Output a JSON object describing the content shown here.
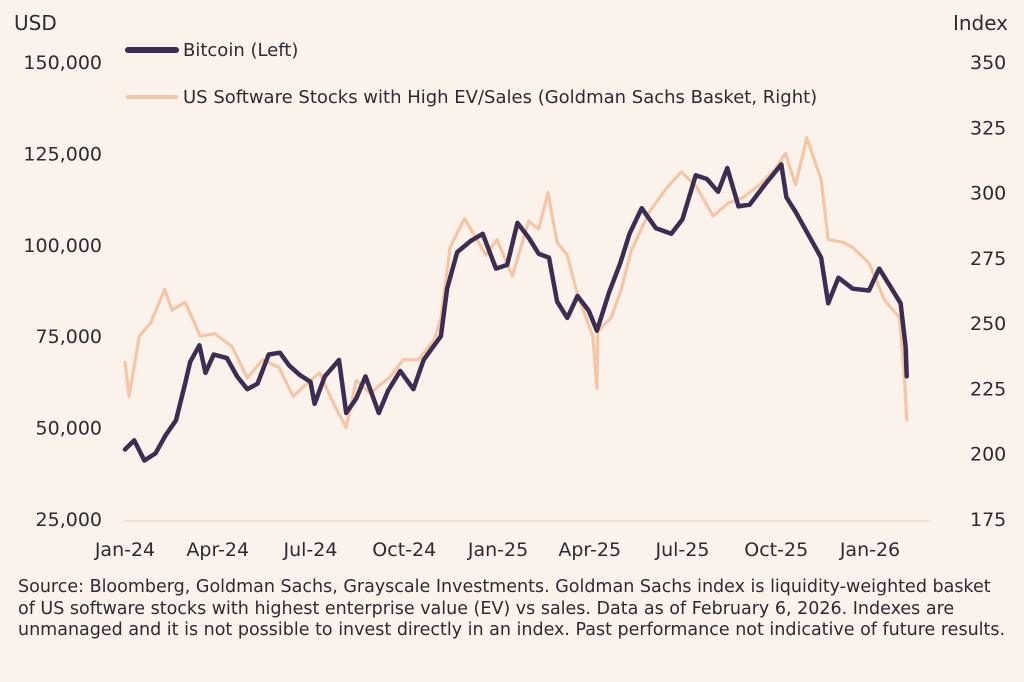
{
  "chart_data": {
    "type": "line",
    "left_axis_label": "USD",
    "right_axis_label": "Index",
    "left_ylim": [
      25000,
      150000
    ],
    "right_ylim": [
      175,
      350
    ],
    "left_ticks": [
      "25,000",
      "50,000",
      "75,000",
      "100,000",
      "125,000",
      "150,000"
    ],
    "right_ticks": [
      "175",
      "200",
      "225",
      "250",
      "275",
      "300",
      "325",
      "350"
    ],
    "x_tick_labels": [
      "Jan-24",
      "Apr-24",
      "Jul-24",
      "Oct-24",
      "Jan-25",
      "Apr-25",
      "Jul-25",
      "Oct-25",
      "Jan-26"
    ],
    "x_range": [
      "2024-01",
      "2026-02"
    ],
    "grid": false,
    "legend_position": "top-left",
    "series": [
      {
        "name": "Bitcoin (Left)",
        "axis": "left",
        "color": "#3d2d52",
        "x": [
          "2024-01-01",
          "2024-01-10",
          "2024-01-20",
          "2024-01-31",
          "2024-02-10",
          "2024-02-20",
          "2024-02-29",
          "2024-03-05",
          "2024-03-14",
          "2024-03-20",
          "2024-03-28",
          "2024-04-10",
          "2024-04-20",
          "2024-04-30",
          "2024-05-10",
          "2024-05-21",
          "2024-06-01",
          "2024-06-10",
          "2024-06-20",
          "2024-07-01",
          "2024-07-05",
          "2024-07-15",
          "2024-07-29",
          "2024-08-05",
          "2024-08-15",
          "2024-08-24",
          "2024-09-06",
          "2024-09-15",
          "2024-09-27",
          "2024-10-10",
          "2024-10-20",
          "2024-10-29",
          "2024-11-06",
          "2024-11-12",
          "2024-11-22",
          "2024-12-05",
          "2024-12-17",
          "2024-12-30",
          "2025-01-10",
          "2025-01-20",
          "2025-01-31",
          "2025-02-10",
          "2025-02-20",
          "2025-02-28",
          "2025-03-10",
          "2025-03-20",
          "2025-03-31",
          "2025-04-08",
          "2025-04-20",
          "2025-05-01",
          "2025-05-10",
          "2025-05-22",
          "2025-06-05",
          "2025-06-20",
          "2025-07-01",
          "2025-07-14",
          "2025-07-25",
          "2025-08-05",
          "2025-08-14",
          "2025-08-25",
          "2025-09-05",
          "2025-09-20",
          "2025-10-06",
          "2025-10-11",
          "2025-10-20",
          "2025-11-04",
          "2025-11-14",
          "2025-11-21",
          "2025-12-01",
          "2025-12-15",
          "2025-12-31",
          "2026-01-10",
          "2026-01-20",
          "2026-01-31",
          "2026-02-05",
          "2026-02-06"
        ],
        "values": [
          44000,
          46500,
          41000,
          43000,
          48000,
          52000,
          62000,
          68000,
          72500,
          65000,
          70000,
          69000,
          64000,
          60500,
          62000,
          70000,
          70500,
          67000,
          64500,
          62500,
          56500,
          64000,
          68500,
          54000,
          58000,
          64000,
          54000,
          60000,
          65500,
          60500,
          68500,
          72000,
          75000,
          88000,
          98000,
          101000,
          103000,
          93500,
          94500,
          106000,
          102000,
          97500,
          96500,
          84500,
          80000,
          86000,
          82000,
          76500,
          87000,
          95000,
          103000,
          110000,
          104500,
          103000,
          107000,
          119000,
          118000,
          114500,
          121000,
          110500,
          111000,
          116500,
          122000,
          113000,
          109000,
          101500,
          96500,
          84000,
          91000,
          88000,
          87500,
          93500,
          89000,
          84000,
          72000,
          64000
        ]
      },
      {
        "name": "US Software Stocks with High EV/Sales (Goldman Sachs Basket, Right)",
        "axis": "right",
        "color": "#f4c6a5",
        "x": [
          "2024-01-01",
          "2024-01-05",
          "2024-01-15",
          "2024-01-26",
          "2024-02-09",
          "2024-02-16",
          "2024-02-29",
          "2024-03-15",
          "2024-03-29",
          "2024-04-15",
          "2024-04-30",
          "2024-05-15",
          "2024-05-31",
          "2024-06-14",
          "2024-06-28",
          "2024-07-10",
          "2024-07-24",
          "2024-08-05",
          "2024-08-15",
          "2024-08-29",
          "2024-09-06",
          "2024-09-16",
          "2024-09-30",
          "2024-10-15",
          "2024-10-31",
          "2024-11-06",
          "2024-11-15",
          "2024-11-29",
          "2024-12-10",
          "2024-12-20",
          "2024-12-31",
          "2025-01-15",
          "2025-01-31",
          "2025-02-10",
          "2025-02-19",
          "2025-02-28",
          "2025-03-10",
          "2025-03-20",
          "2025-04-04",
          "2025-04-08",
          "2025-04-09",
          "2025-04-22",
          "2025-05-02",
          "2025-05-12",
          "2025-05-30",
          "2025-06-16",
          "2025-06-30",
          "2025-07-15",
          "2025-07-31",
          "2025-08-15",
          "2025-08-29",
          "2025-09-15",
          "2025-09-30",
          "2025-10-10",
          "2025-10-20",
          "2025-10-31",
          "2025-11-14",
          "2025-11-21",
          "2025-12-05",
          "2025-12-15",
          "2025-12-31",
          "2026-01-15",
          "2026-01-30",
          "2026-02-04",
          "2026-02-06"
        ],
        "values": [
          235,
          222,
          245,
          250,
          263,
          255,
          258,
          245,
          246,
          241,
          229,
          236,
          233,
          222,
          227,
          231,
          219,
          210,
          228,
          223,
          226,
          229,
          236,
          236,
          244,
          252,
          279,
          290,
          283,
          276,
          282,
          268,
          289,
          286,
          300,
          281,
          276,
          261,
          245,
          225,
          247,
          252,
          263,
          278,
          293,
          302,
          308,
          302,
          291,
          296,
          298,
          303,
          309,
          315,
          303,
          321,
          305,
          282,
          281,
          279,
          273,
          259,
          252,
          228,
          213
        ]
      }
    ],
    "source_note": "Source: Bloomberg, Goldman Sachs, Grayscale Investments. Goldman Sachs index is liquidity-weighted basket of US software stocks with highest enterprise value (EV) vs sales. Data as of February 6, 2026. Indexes are unmanaged and it is not possible to invest directly in an index. Past performance not indicative of future results."
  }
}
